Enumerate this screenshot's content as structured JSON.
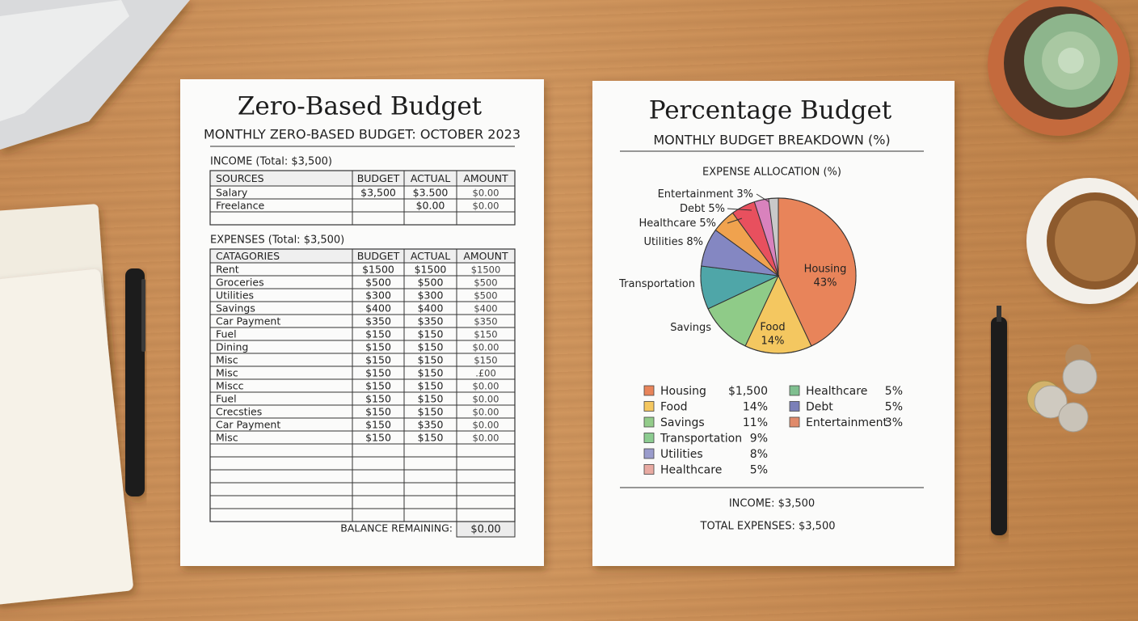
{
  "budget_sheet": {
    "title": "Zero-Based Budget",
    "subtitle": "MONTHLY ZERO-BASED BUDGET: OCTOBER 2023",
    "income": {
      "heading": "INCOME (Total: $3,500)",
      "columns": [
        "SOURCES",
        "BUDGET",
        "ACTUAL",
        "AMOUNT"
      ],
      "rows": [
        [
          "Salary",
          "$3,500",
          "$3.500",
          "$0.00"
        ],
        [
          "Freelance",
          null,
          "$0.00",
          "$0.00"
        ]
      ]
    },
    "expenses": {
      "heading": "EXPENSES (Total: $3,500)",
      "columns": [
        "CATAGORIES",
        "BUDGET",
        "ACTUAL",
        "AMOUNT"
      ],
      "rows": [
        [
          "Rent",
          "$1500",
          "$1500",
          "$1500"
        ],
        [
          "Groceries",
          "$500",
          "$500",
          "$500"
        ],
        [
          "Utilities",
          "$300",
          "$300",
          "$500"
        ],
        [
          "Savings",
          "$400",
          "$400",
          "$400"
        ],
        [
          "Car Payment",
          "$350",
          "$350",
          "$350"
        ],
        [
          "Fuel",
          "$150",
          "$150",
          "$150"
        ],
        [
          "Dining",
          "$150",
          "$150",
          "$0.00"
        ],
        [
          "Misc",
          "$150",
          "$150",
          "$150"
        ],
        [
          "Misc",
          "$150",
          "$150",
          ".£00"
        ],
        [
          "Miscc",
          "$150",
          "$150",
          "$0.00"
        ],
        [
          "Fuel",
          "$150",
          "$150",
          "$0.00"
        ],
        [
          "Crecsties",
          "$150",
          "$150",
          "$0.00"
        ],
        [
          "Car Payment",
          "$150",
          "$350",
          "$0.00"
        ],
        [
          "Misc",
          "$150",
          "$150",
          "$0.00"
        ]
      ]
    },
    "balance": {
      "label": "BALANCE REMAINING:",
      "value": "$0.00"
    }
  },
  "percentage_sheet": {
    "title": "Percentage Budget",
    "subtitle": "MONTHLY BUDGET BREAKDOWN (%)",
    "chart_data": {
      "type": "pie",
      "title": "EXPENSE ALLOCATION (%)",
      "categories": [
        "Housing",
        "Food",
        "Savings",
        "Transportation",
        "Utilities",
        "Healthcare",
        "Debt",
        "Entertainment"
      ],
      "values": [
        43,
        14,
        11,
        9,
        8,
        5,
        5,
        3
      ],
      "value_labels": [
        "43%",
        "14%",
        null,
        null,
        "8%",
        "5%",
        "5%",
        "3%"
      ],
      "colors": [
        "#e8845a",
        "#f4c760",
        "#8fcb88",
        "#4fa6a8",
        "#8487c2",
        "#f0a24e",
        "#e8505e",
        "#d982bd"
      ]
    },
    "legend": [
      {
        "label": "Housing",
        "value": "$1,500",
        "color": "#e8845a"
      },
      {
        "label": "Food",
        "value": "14%",
        "color": "#f4c760"
      },
      {
        "label": "Savings",
        "value": "11%",
        "color": "#93cc8a"
      },
      {
        "label": "Transportation",
        "value": "9%",
        "color": "#8ccc90"
      },
      {
        "label": "Utilities",
        "value": "8%",
        "color": "#9a9ccc"
      },
      {
        "label": "Healthcare",
        "value": "5%",
        "color": "#e8aaa2"
      },
      {
        "label": "Healthcare",
        "value": "5%",
        "color": "#7fbf8f"
      },
      {
        "label": "Debt",
        "value": "5%",
        "color": "#7b80b8"
      },
      {
        "label": "Entertainment",
        "value": "3%",
        "color": "#e08a6a"
      }
    ],
    "income": "INCOME: $3,500",
    "total_expenses": "TOTAL EXPENSES: $3,500"
  }
}
